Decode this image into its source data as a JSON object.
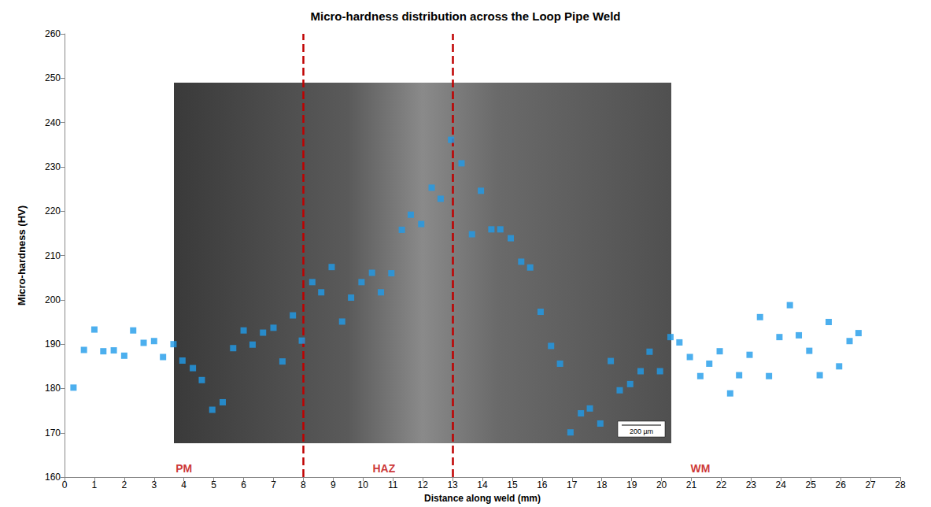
{
  "chart_data": {
    "type": "scatter",
    "title": "Micro-hardness distribution across the Loop Pipe Weld",
    "x_label": "Distance along weld (mm)",
    "y_label": "Micro-hardness (HV)",
    "x": [
      0.3,
      0.65,
      1.0,
      1.3,
      1.65,
      2.0,
      2.3,
      2.65,
      3.0,
      3.3,
      3.65,
      3.95,
      4.3,
      4.6,
      4.95,
      5.3,
      5.65,
      6.0,
      6.3,
      6.65,
      7.0,
      7.3,
      7.65,
      7.95,
      8.3,
      8.6,
      8.95,
      9.3,
      9.6,
      9.95,
      10.3,
      10.6,
      10.95,
      11.3,
      11.6,
      11.95,
      12.3,
      12.6,
      12.95,
      13.3,
      13.65,
      13.95,
      14.3,
      14.6,
      14.95,
      15.3,
      15.6,
      15.95,
      16.3,
      16.6,
      16.95,
      17.3,
      17.6,
      17.95,
      18.3,
      18.6,
      18.95,
      19.3,
      19.6,
      19.95,
      20.3,
      20.6,
      20.95,
      21.3,
      21.6,
      21.95,
      22.3,
      22.6,
      22.95,
      23.3,
      23.6,
      23.95,
      24.3,
      24.6,
      24.95,
      25.3,
      25.6,
      25.95,
      26.3,
      26.6
    ],
    "values": [
      180.2,
      188.7,
      193.3,
      188.4,
      188.6,
      187.4,
      193.1,
      190.3,
      190.7,
      187.1,
      190.0,
      186.3,
      184.6,
      181.9,
      175.2,
      176.9,
      189.1,
      193.1,
      189.9,
      192.6,
      193.7,
      186.1,
      196.5,
      190.8,
      204.0,
      201.7,
      207.4,
      195.1,
      200.5,
      204.0,
      206.1,
      201.7,
      206.0,
      215.8,
      219.2,
      217.1,
      225.3,
      222.8,
      236.1,
      230.8,
      214.8,
      224.6,
      215.9,
      215.9,
      213.9,
      208.6,
      207.3,
      197.3,
      189.6,
      185.6,
      170.1,
      174.4,
      175.5,
      172.1,
      186.2,
      179.6,
      181.0,
      183.9,
      188.3,
      183.9,
      191.6,
      190.4,
      187.1,
      182.8,
      185.6,
      188.4,
      178.9,
      183.0,
      187.6,
      196.1,
      182.8,
      191.6,
      198.8,
      192.0,
      188.5,
      183.0,
      195.0,
      185.0,
      190.7,
      192.5
    ],
    "color": "#1f9bea",
    "marker": "square",
    "xlim": [
      0,
      28
    ],
    "xticks": [
      0,
      1,
      2,
      3,
      4,
      5,
      6,
      7,
      8,
      9,
      10,
      11,
      12,
      13,
      14,
      15,
      16,
      17,
      18,
      19,
      20,
      21,
      22,
      23,
      24,
      25,
      26,
      27,
      28
    ],
    "ylim": [
      160,
      260
    ],
    "yticks": [
      160,
      170,
      180,
      190,
      200,
      210,
      220,
      230,
      240,
      250,
      260
    ],
    "grid": false,
    "boundaries": [
      8,
      13
    ],
    "boundary_color": "#c00000",
    "line_style": "dashed",
    "regions": [
      {
        "label": "PM",
        "x": 4.0,
        "y": 162
      },
      {
        "label": "HAZ",
        "x": 10.7,
        "y": 162
      },
      {
        "label": "WM",
        "x": 21.3,
        "y": 162
      }
    ],
    "annotations": [
      "200 µm"
    ]
  }
}
